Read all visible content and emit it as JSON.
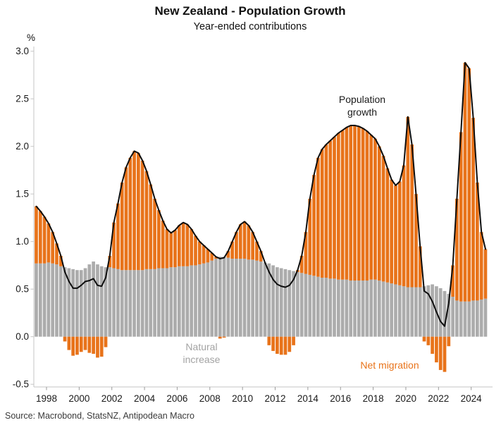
{
  "chart": {
    "title": "New Zealand - Population Growth",
    "subtitle": "Year-ended contributions",
    "y_unit": "%",
    "source": "Source: Macrobond, StatsNZ, Antipodean Macro",
    "annotations": {
      "population_growth": {
        "line1": "Population",
        "line2": "growth",
        "color": "#1a1a1a"
      },
      "natural_increase": {
        "line1": "Natural",
        "line2": "increase",
        "color": "#a3a3a3"
      },
      "net_migration": {
        "text": "Net migration",
        "color": "#e8731a"
      }
    },
    "colors": {
      "natural_bar": "#acacac",
      "migration_bar": "#e8731a",
      "growth_line": "#0d0d0d",
      "axis": "#c6c6c6",
      "tick": "#9a9a9a"
    }
  },
  "chart_data": {
    "type": "bar",
    "subtype": "stacked quarterly bars with total line overlay",
    "title": "New Zealand - Population Growth",
    "subtitle": "Year-ended contributions",
    "ylabel": "%",
    "ylim": [
      -0.55,
      3.05
    ],
    "y_ticks": [
      3.0,
      2.5,
      2.0,
      1.5,
      1.0,
      0.5,
      0.0,
      -0.5
    ],
    "y_tick_labels": [
      "3.0",
      "2.5",
      "2.0",
      "1.5",
      "1.0",
      "0.5",
      "0.0",
      "-0.5"
    ],
    "x_ticks": [
      1998,
      2000,
      2002,
      2004,
      2006,
      2008,
      2010,
      2012,
      2014,
      2016,
      2018,
      2020,
      2022,
      2024
    ],
    "grid": false,
    "legend_position": "inline-annotations",
    "quarters": [
      "1997 Q2",
      "1997 Q3",
      "1997 Q4",
      "1998 Q1",
      "1998 Q2",
      "1998 Q3",
      "1998 Q4",
      "1999 Q1",
      "1999 Q2",
      "1999 Q3",
      "1999 Q4",
      "2000 Q1",
      "2000 Q2",
      "2000 Q3",
      "2000 Q4",
      "2001 Q1",
      "2001 Q2",
      "2001 Q3",
      "2001 Q4",
      "2002 Q1",
      "2002 Q2",
      "2002 Q3",
      "2002 Q4",
      "2003 Q1",
      "2003 Q2",
      "2003 Q3",
      "2003 Q4",
      "2004 Q1",
      "2004 Q2",
      "2004 Q3",
      "2004 Q4",
      "2005 Q1",
      "2005 Q2",
      "2005 Q3",
      "2005 Q4",
      "2006 Q1",
      "2006 Q2",
      "2006 Q3",
      "2006 Q4",
      "2007 Q1",
      "2007 Q2",
      "2007 Q3",
      "2007 Q4",
      "2008 Q1",
      "2008 Q2",
      "2008 Q3",
      "2008 Q4",
      "2009 Q1",
      "2009 Q2",
      "2009 Q3",
      "2009 Q4",
      "2010 Q1",
      "2010 Q2",
      "2010 Q3",
      "2010 Q4",
      "2011 Q1",
      "2011 Q2",
      "2011 Q3",
      "2011 Q4",
      "2012 Q1",
      "2012 Q2",
      "2012 Q3",
      "2012 Q4",
      "2013 Q1",
      "2013 Q2",
      "2013 Q3",
      "2013 Q4",
      "2014 Q1",
      "2014 Q2",
      "2014 Q3",
      "2014 Q4",
      "2015 Q1",
      "2015 Q2",
      "2015 Q3",
      "2015 Q4",
      "2016 Q1",
      "2016 Q2",
      "2016 Q3",
      "2016 Q4",
      "2017 Q1",
      "2017 Q2",
      "2017 Q3",
      "2017 Q4",
      "2018 Q1",
      "2018 Q2",
      "2018 Q3",
      "2018 Q4",
      "2019 Q1",
      "2019 Q2",
      "2019 Q3",
      "2019 Q4",
      "2020 Q1",
      "2020 Q2",
      "2020 Q3",
      "2020 Q4",
      "2021 Q1",
      "2021 Q2",
      "2021 Q3",
      "2021 Q4",
      "2022 Q1",
      "2022 Q2",
      "2022 Q3",
      "2022 Q4",
      "2023 Q1",
      "2023 Q2",
      "2023 Q3",
      "2023 Q4",
      "2024 Q1",
      "2024 Q2",
      "2024 Q3",
      "2024 Q4"
    ],
    "series": [
      {
        "name": "Natural increase",
        "type": "bar",
        "color": "#acacac",
        "values": [
          0.77,
          0.77,
          0.77,
          0.78,
          0.77,
          0.76,
          0.74,
          0.73,
          0.72,
          0.71,
          0.7,
          0.7,
          0.72,
          0.76,
          0.79,
          0.76,
          0.74,
          0.73,
          0.73,
          0.72,
          0.71,
          0.7,
          0.7,
          0.7,
          0.7,
          0.7,
          0.7,
          0.71,
          0.71,
          0.71,
          0.72,
          0.72,
          0.72,
          0.73,
          0.73,
          0.74,
          0.74,
          0.74,
          0.75,
          0.75,
          0.76,
          0.77,
          0.78,
          0.8,
          0.82,
          0.84,
          0.84,
          0.83,
          0.82,
          0.82,
          0.82,
          0.82,
          0.81,
          0.81,
          0.8,
          0.79,
          0.78,
          0.77,
          0.75,
          0.73,
          0.72,
          0.71,
          0.7,
          0.69,
          0.68,
          0.67,
          0.66,
          0.65,
          0.64,
          0.63,
          0.62,
          0.62,
          0.61,
          0.61,
          0.6,
          0.6,
          0.6,
          0.59,
          0.59,
          0.59,
          0.59,
          0.59,
          0.6,
          0.6,
          0.59,
          0.58,
          0.57,
          0.56,
          0.55,
          0.54,
          0.53,
          0.52,
          0.52,
          0.52,
          0.52,
          0.53,
          0.54,
          0.55,
          0.53,
          0.51,
          0.48,
          0.45,
          0.42,
          0.38,
          0.37,
          0.37,
          0.37,
          0.38,
          0.38,
          0.39,
          0.4
        ]
      },
      {
        "name": "Net migration",
        "type": "bar",
        "color": "#e8731a",
        "values": [
          0.6,
          0.55,
          0.49,
          0.41,
          0.33,
          0.22,
          0.11,
          -0.05,
          -0.14,
          -0.2,
          -0.19,
          -0.16,
          -0.14,
          -0.17,
          -0.18,
          -0.22,
          -0.21,
          -0.11,
          0.12,
          0.48,
          0.69,
          0.92,
          1.08,
          1.18,
          1.25,
          1.23,
          1.15,
          1.03,
          0.89,
          0.74,
          0.61,
          0.5,
          0.41,
          0.36,
          0.39,
          0.43,
          0.46,
          0.44,
          0.38,
          0.31,
          0.24,
          0.19,
          0.14,
          0.08,
          0.02,
          -0.02,
          -0.01,
          0.07,
          0.18,
          0.28,
          0.36,
          0.39,
          0.36,
          0.29,
          0.2,
          0.11,
          0.0,
          -0.09,
          -0.15,
          -0.18,
          -0.19,
          -0.19,
          -0.16,
          -0.09,
          0.02,
          0.18,
          0.44,
          0.8,
          1.06,
          1.25,
          1.35,
          1.4,
          1.45,
          1.49,
          1.54,
          1.57,
          1.6,
          1.63,
          1.63,
          1.62,
          1.6,
          1.57,
          1.52,
          1.48,
          1.41,
          1.32,
          1.2,
          1.09,
          1.04,
          1.09,
          1.27,
          1.79,
          1.5,
          0.98,
          0.43,
          -0.05,
          -0.09,
          -0.18,
          -0.27,
          -0.35,
          -0.37,
          -0.1,
          0.33,
          1.07,
          1.78,
          2.51,
          2.45,
          1.92,
          1.24,
          0.71,
          0.52
        ]
      },
      {
        "name": "Population growth",
        "type": "line",
        "color": "#0d0d0d",
        "values": [
          1.37,
          1.32,
          1.26,
          1.19,
          1.1,
          0.98,
          0.85,
          0.68,
          0.58,
          0.51,
          0.51,
          0.54,
          0.58,
          0.59,
          0.61,
          0.54,
          0.53,
          0.62,
          0.85,
          1.2,
          1.4,
          1.62,
          1.78,
          1.88,
          1.95,
          1.93,
          1.85,
          1.74,
          1.6,
          1.45,
          1.33,
          1.22,
          1.13,
          1.09,
          1.12,
          1.17,
          1.2,
          1.18,
          1.13,
          1.06,
          1.0,
          0.96,
          0.92,
          0.88,
          0.84,
          0.82,
          0.83,
          0.9,
          1.0,
          1.1,
          1.18,
          1.21,
          1.17,
          1.1,
          1.0,
          0.9,
          0.78,
          0.68,
          0.6,
          0.55,
          0.53,
          0.52,
          0.54,
          0.6,
          0.7,
          0.85,
          1.1,
          1.45,
          1.7,
          1.88,
          1.97,
          2.02,
          2.06,
          2.1,
          2.14,
          2.17,
          2.2,
          2.22,
          2.22,
          2.21,
          2.19,
          2.16,
          2.12,
          2.08,
          2.0,
          1.9,
          1.77,
          1.65,
          1.59,
          1.63,
          1.8,
          2.31,
          2.02,
          1.5,
          0.95,
          0.48,
          0.45,
          0.37,
          0.26,
          0.16,
          0.11,
          0.35,
          0.75,
          1.45,
          2.15,
          2.88,
          2.82,
          2.3,
          1.62,
          1.1,
          0.92
        ]
      }
    ]
  }
}
